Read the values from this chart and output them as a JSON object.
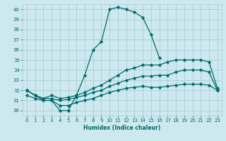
{
  "xlabel": "Humidex (Indice chaleur)",
  "ylabel": "",
  "bg_color": "#cde8ee",
  "grid_color": "#aacdd6",
  "line_color": "#006b6b",
  "xlim": [
    -0.5,
    23.5
  ],
  "ylim": [
    29.5,
    40.5
  ],
  "xticks": [
    0,
    1,
    2,
    3,
    4,
    5,
    6,
    7,
    8,
    9,
    10,
    11,
    12,
    13,
    14,
    15,
    16,
    17,
    18,
    19,
    20,
    21,
    22,
    23
  ],
  "yticks": [
    30,
    31,
    32,
    33,
    34,
    35,
    36,
    37,
    38,
    39,
    40
  ],
  "curves": [
    {
      "x": [
        0,
        1,
        2,
        3,
        4,
        5,
        6,
        7,
        8,
        9,
        10,
        11,
        12,
        13,
        14,
        15,
        16,
        17,
        18,
        19,
        20,
        21,
        22,
        23
      ],
      "y": [
        32,
        31.5,
        31,
        31,
        30,
        30,
        31.5,
        33.5,
        36,
        36.8,
        40,
        40.2,
        40,
        39.7,
        39.2,
        37.5,
        35.2,
        null,
        null,
        null,
        null,
        null,
        null,
        null
      ]
    },
    {
      "x": [
        0,
        1,
        2,
        3,
        4,
        5,
        6,
        7,
        8,
        9,
        10,
        11,
        12,
        13,
        14,
        15,
        16,
        17,
        18,
        19,
        20,
        21,
        22,
        23
      ],
      "y": [
        32,
        31.5,
        31.2,
        31.5,
        31.2,
        31.3,
        31.5,
        31.8,
        32.2,
        32.5,
        33,
        33.5,
        34,
        34.2,
        34.5,
        34.5,
        34.5,
        34.8,
        35,
        35,
        35,
        35,
        34.8,
        32.2
      ]
    },
    {
      "x": [
        0,
        1,
        2,
        3,
        4,
        5,
        6,
        7,
        8,
        9,
        10,
        11,
        12,
        13,
        14,
        15,
        16,
        17,
        18,
        19,
        20,
        21,
        22,
        23
      ],
      "y": [
        32,
        31.5,
        31.2,
        31.2,
        31.0,
        31.1,
        31.3,
        31.5,
        31.8,
        32,
        32.4,
        32.7,
        33,
        33.2,
        33.4,
        33.4,
        33.5,
        33.5,
        33.8,
        34,
        34,
        34,
        33.8,
        32
      ]
    },
    {
      "x": [
        0,
        1,
        2,
        3,
        4,
        5,
        6,
        7,
        8,
        9,
        10,
        11,
        12,
        13,
        14,
        15,
        16,
        17,
        18,
        19,
        20,
        21,
        22,
        23
      ],
      "y": [
        31.5,
        31.2,
        31,
        31,
        30.5,
        30.5,
        30.8,
        31,
        31.2,
        31.5,
        31.8,
        32,
        32.2,
        32.3,
        32.4,
        32.3,
        32.3,
        32.4,
        32.5,
        32.6,
        32.6,
        32.6,
        32.5,
        32
      ]
    }
  ]
}
